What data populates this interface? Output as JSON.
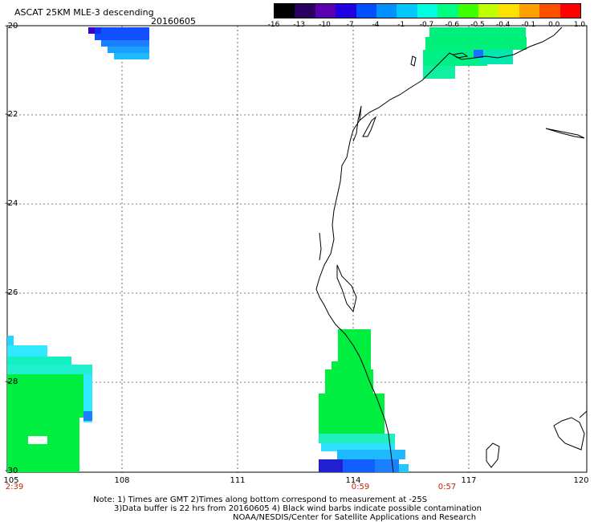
{
  "title": "ASCAT 25KM MLE-3 descending",
  "date": "20160605",
  "colorbar": {
    "labels": [
      "-16",
      "-13",
      "-10",
      "-7",
      "-4",
      "-1",
      "-0.7",
      "-0.6",
      "-0.5",
      "-0.4",
      "-0.1",
      "0.0",
      "1.0"
    ],
    "colors": [
      "#000000",
      "#2a0060",
      "#5a00b0",
      "#2000e0",
      "#0050ff",
      "#0090ff",
      "#00c8ff",
      "#00ffe0",
      "#00ff80",
      "#40ff00",
      "#c0ff00",
      "#ffe000",
      "#ffa000",
      "#ff5000",
      "#ff0000"
    ]
  },
  "axes": {
    "y_ticks": [
      "-20",
      "-22",
      "-24",
      "-26",
      "-28",
      "-30"
    ],
    "x_ticks": [
      "105",
      "108",
      "111",
      "114",
      "117",
      "120"
    ],
    "time_labels": [
      "2:39",
      "0:59",
      "0:57"
    ]
  },
  "notes": [
    "Note: 1) Times are GMT 2)Times along bottom correspond to measurement at -25S",
    "3)Data buffer is 22 hrs from 20160605 4) Black wind barbs indicate possible contamination",
    "NOAA/NESDIS/Center for Satellite Applications and Research"
  ]
}
